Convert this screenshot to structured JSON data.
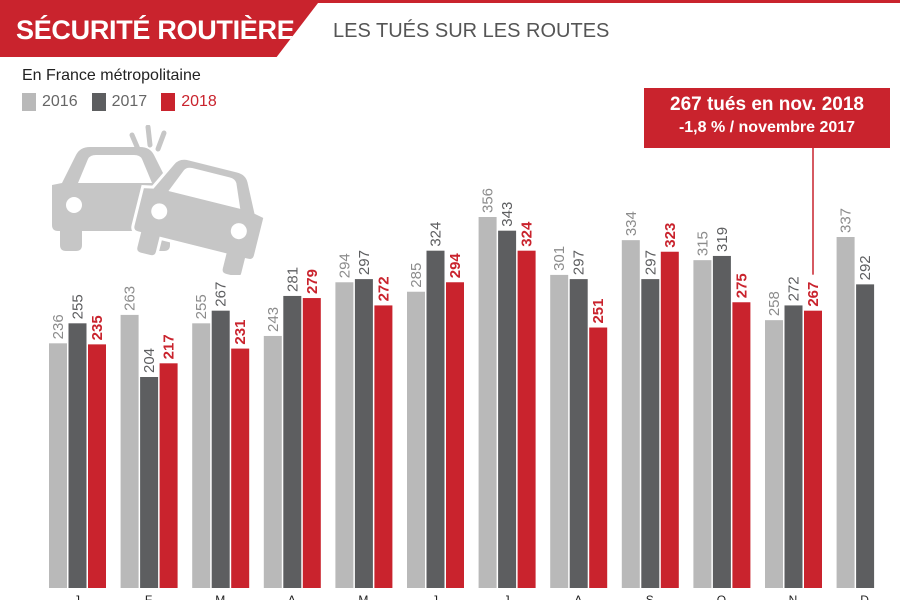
{
  "header": {
    "title": "SÉCURITÉ ROUTIÈRE",
    "subtitle": "LES TUÉS SUR LES ROUTES"
  },
  "region": "En France métropolitaine",
  "legend": [
    {
      "label": "2016",
      "color": "#b9b9b9"
    },
    {
      "label": "2017",
      "color": "#5d5e60"
    },
    {
      "label": "2018",
      "color": "#c9232d"
    }
  ],
  "callout": {
    "line1": "267 tués en nov. 2018",
    "line2": "-1,8 % / novembre 2017"
  },
  "colors": {
    "accent": "#c9232d",
    "bar_2016": "#b9b9b9",
    "bar_2017": "#5d5e60",
    "bar_2018": "#c9232d",
    "label_2016": "#8c8c8c",
    "label_2017": "#5d5e60",
    "label_2018": "#c9232d"
  },
  "illustration": "car-crash-icon",
  "chart_data": {
    "type": "bar",
    "title": "LES TUÉS SUR LES ROUTES",
    "categories": [
      "J",
      "F",
      "M",
      "A",
      "M",
      "J",
      "J",
      "A",
      "S",
      "O",
      "N",
      "D"
    ],
    "series": [
      {
        "name": "2016",
        "values": [
          236,
          263,
          255,
          243,
          294,
          285,
          356,
          301,
          334,
          315,
          258,
          337
        ]
      },
      {
        "name": "2017",
        "values": [
          255,
          204,
          267,
          281,
          297,
          324,
          343,
          297,
          297,
          319,
          272,
          292
        ]
      },
      {
        "name": "2018",
        "values": [
          235,
          217,
          231,
          279,
          272,
          294,
          324,
          251,
          323,
          275,
          267,
          null
        ]
      }
    ],
    "data_labels": true,
    "grid": false,
    "legend_position": "top-left"
  }
}
